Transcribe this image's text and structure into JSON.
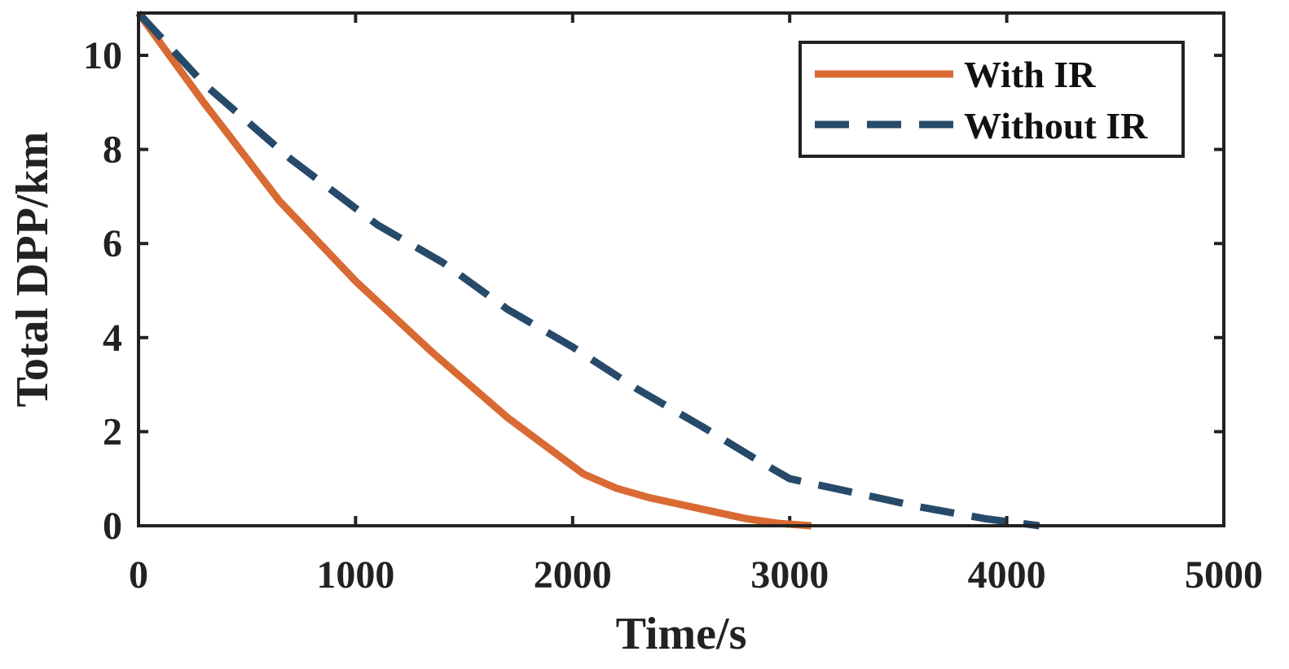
{
  "chart_data": {
    "type": "line",
    "title": "",
    "xlabel": "Time/s",
    "ylabel": "Total DPP/km",
    "xlim": [
      0,
      5000
    ],
    "ylim": [
      0,
      10.9
    ],
    "xticks": [
      0,
      1000,
      2000,
      3000,
      4000,
      5000
    ],
    "yticks": [
      0,
      2,
      4,
      6,
      8,
      10
    ],
    "grid": false,
    "legend_position": "top-right",
    "series": [
      {
        "name": "With IR",
        "color": "#D96A33",
        "dash": "solid",
        "x": [
          0,
          300,
          650,
          1000,
          1350,
          1700,
          2050,
          2200,
          2350,
          2500,
          2650,
          2800,
          2950,
          3100
        ],
        "y": [
          10.9,
          9.0,
          6.9,
          5.2,
          3.7,
          2.3,
          1.1,
          0.8,
          0.6,
          0.45,
          0.3,
          0.15,
          0.05,
          0.0
        ]
      },
      {
        "name": "Without IR",
        "color": "#274A6A",
        "dash": "dashed",
        "x": [
          0,
          300,
          700,
          1100,
          1400,
          1700,
          2000,
          2300,
          2600,
          2850,
          3000,
          3300,
          3600,
          3900,
          4150
        ],
        "y": [
          10.9,
          9.4,
          7.8,
          6.4,
          5.6,
          4.6,
          3.8,
          2.9,
          2.1,
          1.4,
          1.0,
          0.7,
          0.4,
          0.15,
          0.0
        ]
      }
    ]
  }
}
